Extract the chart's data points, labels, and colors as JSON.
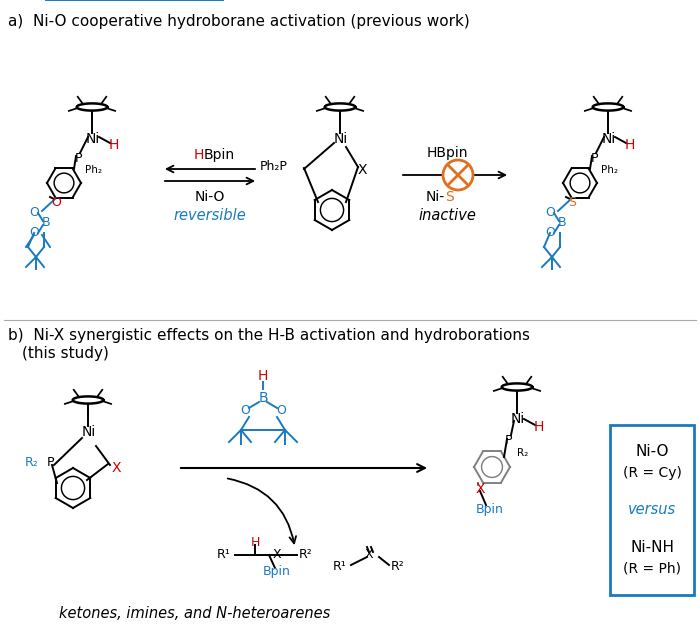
{
  "title_a": "a)  Ni-O cooperative hydroborane activation (previous work)",
  "title_b": "b)  Ni-X synergistic effects on the H-B activation and hydroborations",
  "subtitle_b": "     (this study)",
  "footer_b": "ketones, imines, and N-heteroarenes",
  "color_black": "#000000",
  "color_red": "#cc0000",
  "color_blue": "#1a7abf",
  "color_orange": "#e07020",
  "color_gray": "#808080",
  "bg_color": "#ffffff",
  "figsize": [
    7.0,
    6.32
  ],
  "dpi": 100
}
